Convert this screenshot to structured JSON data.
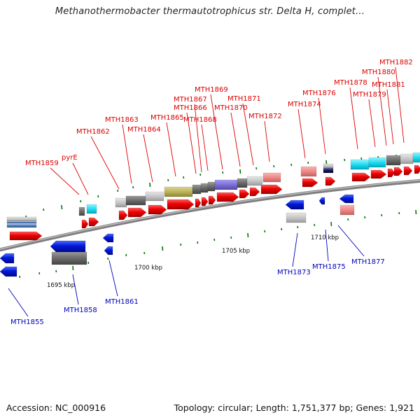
{
  "title": "Methanothermobacter thermautotrophicus str. Delta H, complet...",
  "footer": {
    "accession": "Accession: NC_000916",
    "summary": "Topology: circular; Length: 1,751,377 bp; Genes: 1,921"
  },
  "scale_labels": [
    {
      "id": "kbp-1695",
      "text": "1695 kbp"
    },
    {
      "id": "kbp-1700",
      "text": "1700 kbp"
    },
    {
      "id": "kbp-1705",
      "text": "1705 kbp"
    },
    {
      "id": "kbp-1710",
      "text": "1710 kbp"
    }
  ],
  "gene_labels": [
    {
      "id": "MTH1855",
      "text": "MTH1855",
      "strand": "minus"
    },
    {
      "id": "MTH1858",
      "text": "MTH1858",
      "strand": "minus"
    },
    {
      "id": "MTH1859",
      "text": "MTH1859",
      "strand": "plus"
    },
    {
      "id": "pyrE",
      "text": "pyrE",
      "strand": "plus"
    },
    {
      "id": "MTH1861",
      "text": "MTH1861",
      "strand": "minus"
    },
    {
      "id": "MTH1862",
      "text": "MTH1862",
      "strand": "plus"
    },
    {
      "id": "MTH1863",
      "text": "MTH1863",
      "strand": "plus"
    },
    {
      "id": "MTH1864",
      "text": "MTH1864",
      "strand": "plus"
    },
    {
      "id": "MTH1865",
      "text": "MTH1865",
      "strand": "plus"
    },
    {
      "id": "MTH1866",
      "text": "MTH1866",
      "strand": "plus"
    },
    {
      "id": "MTH1867",
      "text": "MTH1867",
      "strand": "plus"
    },
    {
      "id": "MTH1868",
      "text": "MTH1868",
      "strand": "plus"
    },
    {
      "id": "MTH1869",
      "text": "MTH1869",
      "strand": "plus"
    },
    {
      "id": "MTH1870",
      "text": "MTH1870",
      "strand": "plus"
    },
    {
      "id": "MTH1871",
      "text": "MTH1871",
      "strand": "plus"
    },
    {
      "id": "MTH1872",
      "text": "MTH1872",
      "strand": "plus"
    },
    {
      "id": "MTH1873",
      "text": "MTH1873",
      "strand": "minus"
    },
    {
      "id": "MTH1874",
      "text": "MTH1874",
      "strand": "plus"
    },
    {
      "id": "MTH1875",
      "text": "MTH1875",
      "strand": "minus"
    },
    {
      "id": "MTH1876",
      "text": "MTH1876",
      "strand": "plus"
    },
    {
      "id": "MTH1877",
      "text": "MTH1877",
      "strand": "minus"
    },
    {
      "id": "MTH1878",
      "text": "MTH1878",
      "strand": "plus"
    },
    {
      "id": "MTH1879",
      "text": "MTH1879",
      "strand": "plus"
    },
    {
      "id": "MTH1880",
      "text": "MTH1880",
      "strand": "plus"
    },
    {
      "id": "MTH1881",
      "text": "MTH1881",
      "strand": "plus"
    },
    {
      "id": "MTH1882",
      "text": "MTH1882",
      "strand": "plus"
    }
  ],
  "colors": {
    "plus_strand": "#ee0000",
    "minus_strand": "#0000cc",
    "plus_label": "#dd0000",
    "minus_label": "#0000bb",
    "backbone": "#8a8a8a",
    "tick": "#007700"
  }
}
